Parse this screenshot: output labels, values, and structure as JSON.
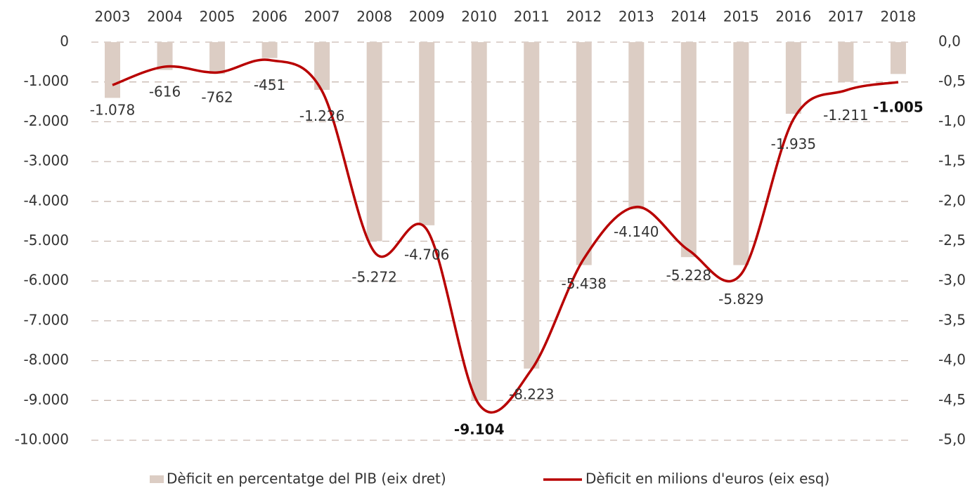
{
  "chart_data": {
    "type": "bar_line",
    "categories": [
      "2003",
      "2004",
      "2005",
      "2006",
      "2007",
      "2008",
      "2009",
      "2010",
      "2011",
      "2012",
      "2013",
      "2014",
      "2015",
      "2016",
      "2017",
      "2018"
    ],
    "series": [
      {
        "name": "Dèficit en percentatge del PIB (eix dret)",
        "type": "bar",
        "axis": "y2",
        "color": "#dccdc4",
        "values": [
          -0.7,
          -0.35,
          -0.4,
          -0.2,
          -0.6,
          -2.5,
          -2.3,
          -4.5,
          -4.1,
          -2.8,
          -2.1,
          -2.7,
          -2.8,
          -0.9,
          -0.5,
          -0.4
        ]
      },
      {
        "name": "Dèficit en milions d'euros (eix esq)",
        "type": "line",
        "axis": "y",
        "color": "#b80000",
        "values": [
          -1078,
          -616,
          -762,
          -451,
          -1226,
          -5272,
          -4706,
          -9104,
          -8223,
          -5438,
          -4140,
          -5228,
          -5829,
          -1935,
          -1211,
          -1005
        ],
        "value_labels": [
          "-1.078",
          "-616",
          "-762",
          "-451",
          "-1.226",
          "-5.272",
          "-4.706",
          "-9.104",
          "-8.223",
          "-5.438",
          "-4.140",
          "-5.228",
          "-5.829",
          "-1.935",
          "-1.211",
          "-1.005"
        ]
      }
    ],
    "ylim": [
      -10000,
      0
    ],
    "yticks": [
      0,
      {
        "value": -1000,
        "label": "-1.000"
      },
      {
        "value": -2000,
        "label": "-2.000"
      },
      {
        "value": -3000,
        "label": "-3.000"
      },
      {
        "value": -4000,
        "label": "-4.000"
      },
      {
        "value": -5000,
        "label": "-5.000"
      },
      {
        "value": -6000,
        "label": "-6.000"
      },
      {
        "value": -7000,
        "label": "-7.000"
      },
      {
        "value": -8000,
        "label": "-8.000"
      },
      {
        "value": -9000,
        "label": "-9.000"
      },
      {
        "value": -10000,
        "label": "-10.000"
      }
    ],
    "y2lim": [
      -5,
      0
    ],
    "y2ticks": [
      {
        "value": 0,
        "label": "0,0"
      },
      {
        "value": -0.5,
        "label": "-0,5"
      },
      {
        "value": -1,
        "label": "-1,0"
      },
      {
        "value": -1.5,
        "label": "-1,5"
      },
      {
        "value": -2,
        "label": "-2,0"
      },
      {
        "value": -2.5,
        "label": "-2,5"
      },
      {
        "value": -3,
        "label": "-3,0"
      },
      {
        "value": -3.5,
        "label": "-3,5"
      },
      {
        "value": -4,
        "label": "-4,0"
      },
      {
        "value": -4.5,
        "label": "-4,5"
      },
      {
        "value": -5,
        "label": "-5,0"
      }
    ],
    "grid": true,
    "legend": "bottom"
  }
}
